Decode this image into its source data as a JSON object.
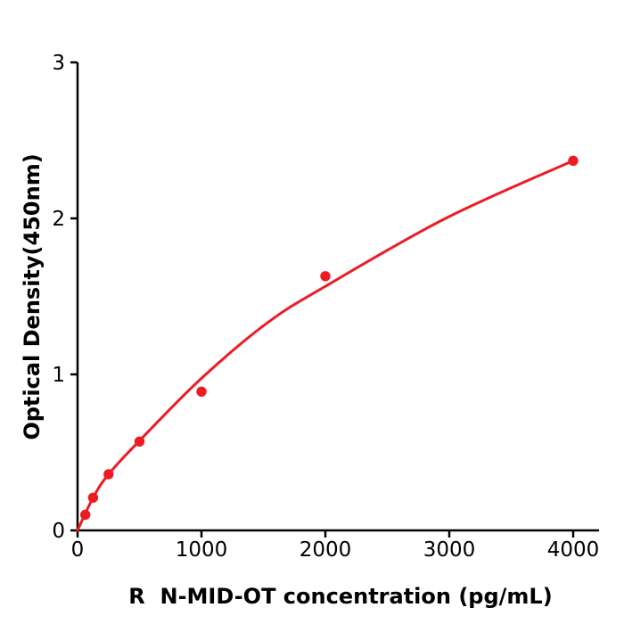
{
  "chart_data": {
    "type": "scatter",
    "title": "",
    "xlabel": "R  N-MID-OT concentration (pg/mL)",
    "ylabel": "Optical Density(450nm)",
    "background": "#ffffff",
    "axis_color": "#000000",
    "grid": false,
    "legend": null,
    "xlim": [
      0,
      4209
    ],
    "ylim": [
      0,
      3
    ],
    "x_ticks": [
      {
        "value": 0,
        "label": "0"
      },
      {
        "value": 1000,
        "label": "1000"
      },
      {
        "value": 2000,
        "label": "2000"
      },
      {
        "value": 3000,
        "label": "3000"
      },
      {
        "value": 4000,
        "label": "4000"
      }
    ],
    "y_ticks": [
      {
        "value": 0,
        "label": "0"
      },
      {
        "value": 1,
        "label": "1"
      },
      {
        "value": 2,
        "label": "2"
      },
      {
        "value": 3,
        "label": "3"
      }
    ],
    "series": [
      {
        "name": "standard-points",
        "type": "scatter",
        "color": "#ed1c24",
        "marker": "circle",
        "marker_radius": 5.7,
        "x": [
          62.5,
          125,
          250,
          500,
          1000,
          2000,
          4000
        ],
        "y": [
          0.1,
          0.21,
          0.36,
          0.57,
          0.89,
          1.63,
          2.37
        ]
      },
      {
        "name": "fitted-curve",
        "type": "line",
        "color": "#ed1c24",
        "line_width": 3,
        "x": [
          0,
          125,
          250,
          500,
          1000,
          1530,
          1990,
          2970,
          4000
        ],
        "y": [
          0,
          0.21,
          0.36,
          0.575,
          0.975,
          1.33,
          1.56,
          2.0,
          2.37
        ]
      }
    ]
  }
}
